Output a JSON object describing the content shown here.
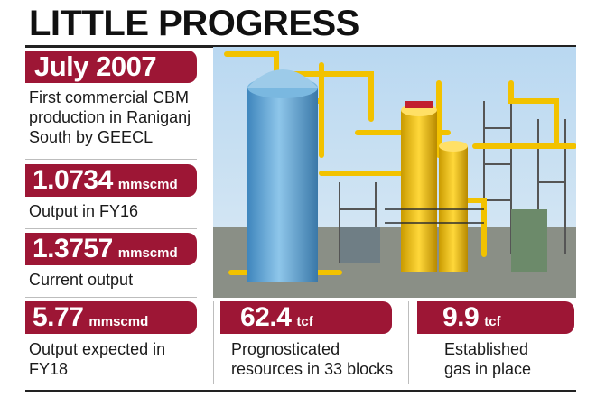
{
  "title": "LITTLE PROGRESS",
  "stats": [
    {
      "value": "July 2007",
      "unit": "",
      "description": "First commercial CBM production in Raniganj South by GEECL"
    },
    {
      "value": "1.0734",
      "unit": "mmscmd",
      "description": "Output in FY16"
    },
    {
      "value": "1.3757",
      "unit": "mmscmd",
      "description": "Current output"
    },
    {
      "value": "5.77",
      "unit": "mmscmd",
      "description": "Output expected in FY18"
    },
    {
      "value": "62.4",
      "unit": "tcf",
      "description": "Prognosticated resources in 33 blocks"
    },
    {
      "value": "9.9",
      "unit": "tcf",
      "description": "Established gas in place"
    }
  ],
  "colors": {
    "accent": "#9d1635",
    "pipes": "#f2c200",
    "tank": "#6aaed8",
    "sky": "#a9cfee"
  }
}
